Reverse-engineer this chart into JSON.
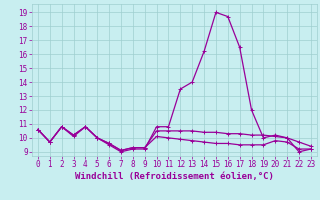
{
  "xlabel": "Windchill (Refroidissement éolien,°C)",
  "bg_color": "#c8eef0",
  "grid_color": "#9fcfcf",
  "line_color": "#990099",
  "xlim": [
    -0.5,
    23.5
  ],
  "ylim": [
    8.7,
    19.6
  ],
  "xticks": [
    0,
    1,
    2,
    3,
    4,
    5,
    6,
    7,
    8,
    9,
    10,
    11,
    12,
    13,
    14,
    15,
    16,
    17,
    18,
    19,
    20,
    21,
    22,
    23
  ],
  "yticks": [
    9,
    10,
    11,
    12,
    13,
    14,
    15,
    16,
    17,
    18,
    19
  ],
  "line1_x": [
    0,
    1,
    2,
    3,
    4,
    5,
    6,
    7,
    8,
    9,
    10,
    11,
    12,
    13,
    14,
    15,
    16,
    17,
    18,
    19,
    20,
    21,
    22,
    23
  ],
  "line1_y": [
    10.6,
    9.7,
    10.8,
    10.1,
    10.8,
    10.0,
    9.5,
    9.0,
    9.2,
    9.2,
    10.8,
    10.8,
    13.5,
    14.0,
    16.2,
    19.0,
    18.7,
    16.5,
    12.0,
    10.0,
    10.2,
    10.0,
    9.0,
    9.2
  ],
  "line2_x": [
    0,
    1,
    2,
    3,
    4,
    5,
    6,
    7,
    8,
    9,
    10,
    11,
    12,
    13,
    14,
    15,
    16,
    17,
    18,
    19,
    20,
    21,
    22,
    23
  ],
  "line2_y": [
    10.6,
    9.7,
    10.8,
    10.2,
    10.8,
    10.0,
    9.6,
    9.1,
    9.3,
    9.3,
    10.5,
    10.5,
    10.5,
    10.5,
    10.4,
    10.4,
    10.3,
    10.3,
    10.2,
    10.2,
    10.1,
    10.0,
    9.7,
    9.4
  ],
  "line3_x": [
    0,
    1,
    2,
    3,
    4,
    5,
    6,
    7,
    8,
    9,
    10,
    11,
    12,
    13,
    14,
    15,
    16,
    17,
    18,
    19,
    20,
    21,
    22,
    23
  ],
  "line3_y": [
    10.6,
    9.7,
    10.8,
    10.2,
    10.8,
    10.0,
    9.6,
    9.1,
    9.3,
    9.3,
    10.1,
    10.0,
    9.9,
    9.8,
    9.7,
    9.6,
    9.6,
    9.5,
    9.5,
    9.5,
    9.8,
    9.7,
    9.2,
    9.2
  ],
  "marker_size": 2.5,
  "line_width": 0.9,
  "tick_fontsize": 5.5,
  "xlabel_fontsize": 6.5
}
